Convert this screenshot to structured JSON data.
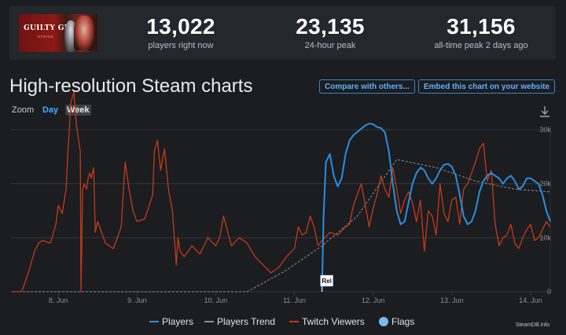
{
  "game": {
    "logo_text": "GUILTY GEAR",
    "logo_sub": "STRIVE"
  },
  "stats": [
    {
      "value": "13,022",
      "label": "players right now"
    },
    {
      "value": "23,135",
      "label": "24-hour peak"
    },
    {
      "value": "31,156",
      "label": "all-time peak 2 days ago"
    }
  ],
  "title": "High-resolution Steam charts",
  "buttons": {
    "compare": "Compare with others...",
    "embed": "Embed this chart on your website"
  },
  "zoom": {
    "label": "Zoom",
    "day": "Day",
    "week": "Week"
  },
  "credit": "SteamDB.info",
  "chart_data": {
    "type": "line",
    "x_unit": "days (June)",
    "xlim": [
      7.4,
      14.25
    ],
    "ylim": [
      0,
      30000
    ],
    "yticks": [
      0,
      10000,
      20000,
      30000
    ],
    "ytick_labels": [
      "0",
      "10k",
      "20k",
      "30k"
    ],
    "xticks": [
      8,
      9,
      10,
      11,
      12,
      13,
      14
    ],
    "xtick_labels": [
      "8. Jun",
      "9. Jun",
      "10. Jun",
      "11. Jun",
      "12. Jun",
      "13. Jun",
      "14. Jun"
    ],
    "flag": {
      "x": 11.35,
      "label": "Rel"
    },
    "legend": [
      "Players",
      "Players Trend",
      "Twitch Viewers",
      "Flags"
    ],
    "colors": {
      "players": "#2c8de0",
      "trend": "#8a8d91",
      "twitch": "#c43a18",
      "flags": "#7ab8f0",
      "grid": "#33373c"
    },
    "series": [
      {
        "name": "Players",
        "x": [
          11.35,
          11.37,
          11.4,
          11.45,
          11.5,
          11.55,
          11.6,
          11.65,
          11.7,
          11.75,
          11.8,
          11.85,
          11.9,
          11.95,
          12.0,
          12.05,
          12.1,
          12.15,
          12.2,
          12.25,
          12.3,
          12.35,
          12.4,
          12.45,
          12.5,
          12.55,
          12.6,
          12.65,
          12.7,
          12.75,
          12.8,
          12.85,
          12.9,
          12.95,
          13.0,
          13.05,
          13.1,
          13.15,
          13.2,
          13.25,
          13.3,
          13.35,
          13.4,
          13.45,
          13.5,
          13.55,
          13.6,
          13.65,
          13.7,
          13.75,
          13.8,
          13.85,
          13.9,
          13.95,
          14.0,
          14.05,
          14.1,
          14.15,
          14.2,
          14.25
        ],
        "values": [
          0,
          14000,
          24000,
          25500,
          21500,
          19500,
          21000,
          25500,
          28000,
          29000,
          29600,
          30200,
          30800,
          31156,
          31000,
          30500,
          30300,
          29500,
          26000,
          20000,
          15000,
          12500,
          13000,
          16500,
          20000,
          22000,
          23000,
          22500,
          21000,
          20000,
          21000,
          22500,
          23500,
          23700,
          23135,
          21500,
          18000,
          14000,
          12500,
          13000,
          15000,
          18500,
          20500,
          21500,
          22000,
          21500,
          21000,
          20000,
          21000,
          21500,
          20500,
          19000,
          19500,
          21000,
          21000,
          20500,
          20000,
          18000,
          15000,
          13022
        ]
      },
      {
        "name": "Players Trend",
        "x": [
          7.4,
          9.9,
          10.4,
          10.9,
          11.35,
          11.8,
          12.3,
          12.8,
          13.3,
          13.8,
          14.25
        ],
        "values": [
          0,
          0,
          0,
          4000,
          8500,
          14000,
          24500,
          23000,
          20500,
          19000,
          18500
        ]
      },
      {
        "name": "Twitch Viewers",
        "x": [
          7.4,
          7.52,
          7.55,
          7.62,
          7.7,
          7.75,
          7.8,
          7.9,
          7.97,
          8.0,
          8.05,
          8.1,
          8.12,
          8.16,
          8.2,
          8.23,
          8.26,
          8.28,
          8.29,
          8.31,
          8.33,
          8.36,
          8.38,
          8.4,
          8.42,
          8.45,
          8.47,
          8.5,
          8.55,
          8.6,
          8.7,
          8.8,
          8.85,
          8.9,
          8.95,
          9.0,
          9.1,
          9.2,
          9.22,
          9.26,
          9.3,
          9.35,
          9.4,
          9.45,
          9.5,
          9.52,
          9.55,
          9.6,
          9.7,
          9.8,
          9.9,
          10.0,
          10.05,
          10.1,
          10.2,
          10.3,
          10.4,
          10.5,
          10.6,
          10.7,
          10.8,
          10.9,
          11.0,
          11.05,
          11.1,
          11.15,
          11.2,
          11.25,
          11.3,
          11.35,
          11.45,
          11.55,
          11.65,
          11.7,
          11.75,
          11.8,
          11.85,
          11.9,
          11.95,
          12.0,
          12.05,
          12.1,
          12.15,
          12.2,
          12.25,
          12.3,
          12.35,
          12.4,
          12.45,
          12.5,
          12.55,
          12.6,
          12.65,
          12.7,
          12.75,
          12.8,
          12.85,
          12.9,
          12.95,
          13.0,
          13.05,
          13.1,
          13.15,
          13.2,
          13.25,
          13.3,
          13.35,
          13.4,
          13.45,
          13.5,
          13.55,
          13.6,
          13.65,
          13.7,
          13.75,
          13.8,
          13.85,
          13.9,
          13.95,
          14.0,
          14.05,
          14.1,
          14.15,
          14.2,
          14.25
        ],
        "values": [
          0,
          0,
          500,
          3500,
          7500,
          9000,
          9500,
          9000,
          12500,
          16000,
          14500,
          19000,
          25000,
          35000,
          37000,
          31000,
          28000,
          26000,
          0,
          19000,
          20000,
          19000,
          21000,
          22000,
          21000,
          23000,
          11000,
          13000,
          11000,
          9000,
          8000,
          12000,
          24000,
          19000,
          15000,
          13000,
          13500,
          18000,
          26000,
          28000,
          22500,
          26500,
          19000,
          15000,
          5000,
          10000,
          7500,
          6500,
          8500,
          7000,
          10000,
          8500,
          10000,
          14000,
          8500,
          10000,
          9000,
          6500,
          5000,
          3500,
          4500,
          6500,
          8000,
          12000,
          10500,
          11000,
          14000,
          12000,
          8500,
          9500,
          11000,
          10500,
          12000,
          12500,
          16000,
          18000,
          20000,
          16000,
          12000,
          15500,
          18000,
          21500,
          19000,
          17500,
          23000,
          19000,
          14500,
          17000,
          18500,
          16500,
          13000,
          17000,
          7500,
          15000,
          14000,
          10500,
          20000,
          14500,
          13000,
          17000,
          17500,
          12500,
          19000,
          20000,
          22000,
          24000,
          26500,
          27500,
          20500,
          22500,
          12500,
          8500,
          10000,
          10500,
          12500,
          9000,
          8000,
          10000,
          11500,
          12500,
          9500,
          10000,
          11500,
          13000,
          12000
        ]
      }
    ]
  }
}
